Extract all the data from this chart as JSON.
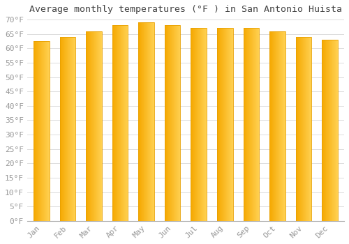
{
  "title": "Average monthly temperatures (°F ) in San Antonio Huista",
  "months": [
    "Jan",
    "Feb",
    "Mar",
    "Apr",
    "May",
    "Jun",
    "Jul",
    "Aug",
    "Sep",
    "Oct",
    "Nov",
    "Dec"
  ],
  "values": [
    62.5,
    64,
    66,
    68,
    69,
    68,
    67,
    67,
    67,
    66,
    64,
    63
  ],
  "bar_color_left": "#F5A800",
  "bar_color_right": "#FFD050",
  "bar_edge_color": "#E8A000",
  "background_color": "#FFFFFF",
  "grid_color": "#DDDDDD",
  "tick_label_color": "#999999",
  "title_color": "#444444",
  "ylim": [
    0,
    70
  ],
  "ytick_step": 5,
  "title_fontsize": 9.5,
  "tick_fontsize": 8,
  "bar_width": 0.6
}
